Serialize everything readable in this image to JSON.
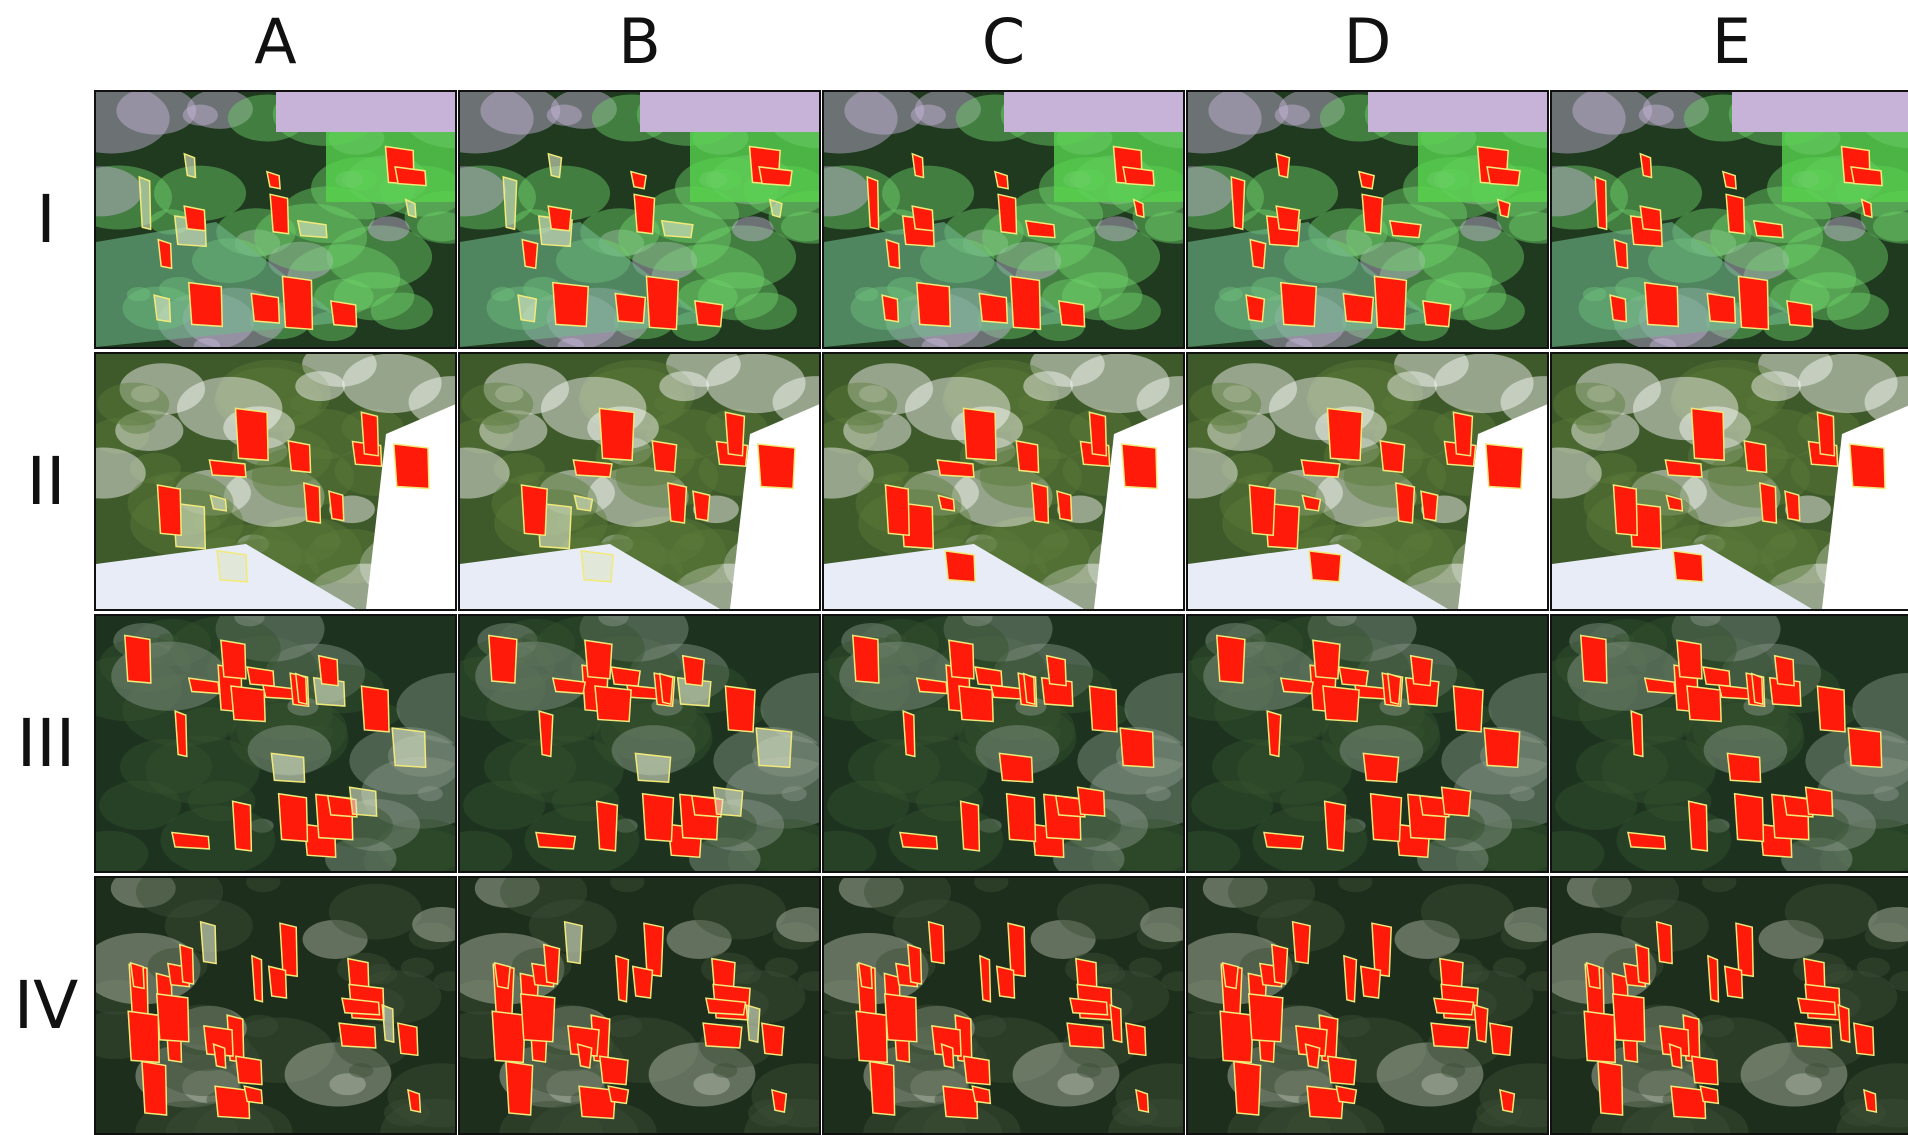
{
  "columns": [
    "A",
    "B",
    "C",
    "D",
    "E"
  ],
  "rows": [
    "I",
    "II",
    "III",
    "IV"
  ]
}
